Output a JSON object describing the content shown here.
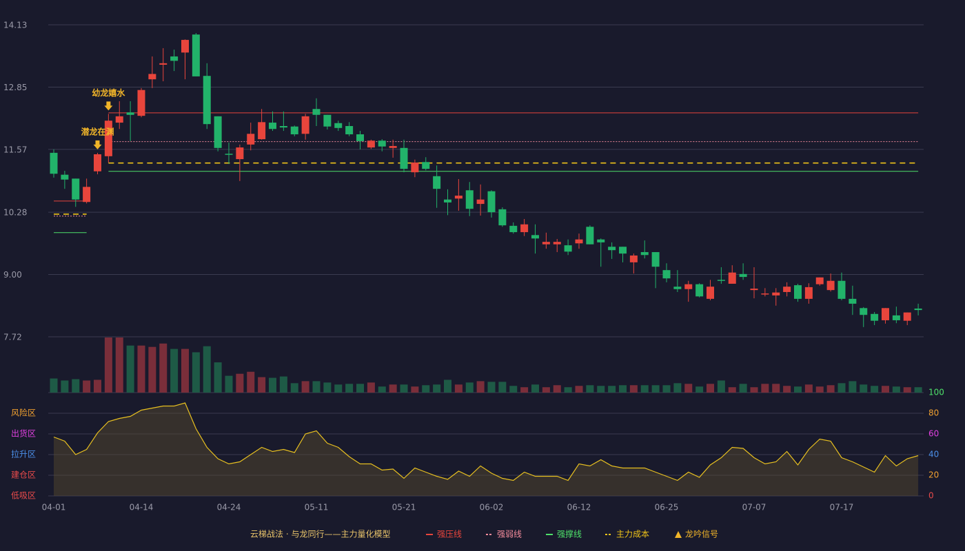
{
  "chart_data": {
    "type": "candlestick",
    "title": "云梯战法 · 与龙同行——主力量化模型",
    "title_color": "#e8c36a",
    "categories": [
      "04-01",
      null,
      null,
      null,
      null,
      null,
      null,
      null,
      "04-14",
      null,
      null,
      null,
      null,
      null,
      null,
      null,
      "04-24",
      null,
      null,
      null,
      null,
      null,
      null,
      null,
      "05-11",
      null,
      null,
      null,
      null,
      null,
      null,
      null,
      "05-21",
      null,
      null,
      null,
      null,
      null,
      null,
      null,
      "06-02",
      null,
      null,
      null,
      null,
      null,
      null,
      null,
      "06-12",
      null,
      null,
      null,
      null,
      null,
      null,
      null,
      "06-25",
      null,
      null,
      null,
      null,
      null,
      null,
      null,
      "07-07",
      null,
      null,
      null,
      null,
      null,
      null,
      null,
      "07-17",
      null,
      null,
      null,
      null,
      null,
      null,
      null
    ],
    "open": [
      11.5,
      11.05,
      10.97,
      10.49,
      11.12,
      11.43,
      12.12,
      12.33,
      12.26,
      13.01,
      13.31,
      13.48,
      13.56,
      13.93,
      13.08,
      12.25,
      11.48,
      11.37,
      11.67,
      11.78,
      12.12,
      12.05,
      12.04,
      11.89,
      12.4,
      12.28,
      12.11,
      12.05,
      11.88,
      11.61,
      11.75,
      11.6,
      11.6,
      11.1,
      11.31,
      11.02,
      10.54,
      10.56,
      10.73,
      10.45,
      10.71,
      10.34,
      10.0,
      9.87,
      9.81,
      9.62,
      9.62,
      9.6,
      9.64,
      9.98,
      9.72,
      9.57,
      9.57,
      9.25,
      9.46,
      9.46,
      9.09,
      8.75,
      8.7,
      8.8,
      8.5,
      8.89,
      8.81,
      9.01,
      8.68,
      8.6,
      8.57,
      8.64,
      8.78,
      8.5,
      8.8,
      8.68,
      8.87,
      8.5,
      8.31,
      8.19,
      8.06,
      8.16,
      8.05,
      8.3
    ],
    "high": [
      11.57,
      11.13,
      10.97,
      10.97,
      11.5,
      12.3,
      12.56,
      12.56,
      12.83,
      13.48,
      13.65,
      13.62,
      13.83,
      13.96,
      13.34,
      12.25,
      11.71,
      11.67,
      12.12,
      12.4,
      12.35,
      12.35,
      12.06,
      12.3,
      12.62,
      12.28,
      12.16,
      12.13,
      11.95,
      11.77,
      11.78,
      11.77,
      11.77,
      11.36,
      11.41,
      11.24,
      10.75,
      10.96,
      10.9,
      10.85,
      10.73,
      10.38,
      10.07,
      10.14,
      10.03,
      9.86,
      9.73,
      9.72,
      9.84,
      10.01,
      9.74,
      9.66,
      9.57,
      9.43,
      9.7,
      9.46,
      9.23,
      9.09,
      8.87,
      8.82,
      8.89,
      9.15,
      9.19,
      9.23,
      9.15,
      8.72,
      8.72,
      8.84,
      8.81,
      8.82,
      8.94,
      9.02,
      9.04,
      8.77,
      8.33,
      8.23,
      8.31,
      8.34,
      8.22,
      8.4
    ],
    "low": [
      10.99,
      10.76,
      10.39,
      10.46,
      11.06,
      11.3,
      11.99,
      11.74,
      12.23,
      12.83,
      12.97,
      13.18,
      13.01,
      13.07,
      11.99,
      11.53,
      11.27,
      10.92,
      11.55,
      11.77,
      11.95,
      11.95,
      11.84,
      11.77,
      12.05,
      11.98,
      11.95,
      11.84,
      11.57,
      11.58,
      11.53,
      11.4,
      11.1,
      11.0,
      11.14,
      10.37,
      10.22,
      10.31,
      10.2,
      10.21,
      10.17,
      9.98,
      9.84,
      9.79,
      9.43,
      9.53,
      9.46,
      9.4,
      9.53,
      9.62,
      9.16,
      9.32,
      9.25,
      9.02,
      9.33,
      8.72,
      8.84,
      8.64,
      8.44,
      8.53,
      8.47,
      8.81,
      8.81,
      8.89,
      8.51,
      8.55,
      8.36,
      8.55,
      8.44,
      8.4,
      8.77,
      8.65,
      8.47,
      8.17,
      7.92,
      7.96,
      7.99,
      8.0,
      7.96,
      8.16
    ],
    "close": [
      11.07,
      10.95,
      10.54,
      10.8,
      11.47,
      12.16,
      12.25,
      12.28,
      12.79,
      13.12,
      13.34,
      13.39,
      13.82,
      13.07,
      12.09,
      11.6,
      11.46,
      11.61,
      11.89,
      12.13,
      11.99,
      12.02,
      11.88,
      12.25,
      12.28,
      12.04,
      12.01,
      11.88,
      11.74,
      11.75,
      11.63,
      11.64,
      11.17,
      11.3,
      11.17,
      10.76,
      10.48,
      10.62,
      10.35,
      10.54,
      10.28,
      10.01,
      9.87,
      10.03,
      9.74,
      9.67,
      9.67,
      9.47,
      9.72,
      9.62,
      9.66,
      9.5,
      9.43,
      9.39,
      9.4,
      9.16,
      8.92,
      8.7,
      8.8,
      8.55,
      8.75,
      8.88,
      9.04,
      8.95,
      8.71,
      8.61,
      8.63,
      8.75,
      8.5,
      8.74,
      8.94,
      8.87,
      8.5,
      8.4,
      8.17,
      8.05,
      8.31,
      8.06,
      8.22,
      8.27
    ],
    "up_color": "#e8453c",
    "down_color": "#22b36a",
    "ylim": [
      7.72,
      14.13
    ],
    "yticks": [
      7.72,
      {
        "value": 9,
        "label": "9.00"
      },
      10.28,
      11.57,
      12.85,
      14.13
    ],
    "grid": true,
    "signals": [
      null,
      null,
      null,
      null,
      "潜龙在渊",
      "幼龙嬉水",
      null,
      null,
      null,
      null,
      null,
      null,
      null,
      null,
      null,
      null,
      null,
      null,
      null,
      null,
      null,
      null,
      null,
      null,
      null,
      null,
      null,
      null,
      null,
      null,
      null,
      null,
      null,
      null,
      null,
      null,
      null,
      null,
      null,
      null,
      null,
      null,
      null,
      null,
      null,
      null,
      null,
      null,
      null,
      null,
      null,
      null,
      null,
      null,
      null,
      null,
      null,
      null,
      null,
      null,
      null,
      null,
      null,
      null,
      null,
      null,
      null,
      null,
      null,
      null,
      null,
      null,
      null,
      null,
      null,
      null,
      null,
      null,
      null,
      null
    ],
    "signal_name": "龙吟信号",
    "signal_color": "#f0b429",
    "lines": [
      {
        "name": "强压线",
        "color": "#e8453c",
        "style": "solid",
        "values": [
          10.51,
          10.51,
          10.51,
          10.51,
          null,
          12.32,
          12.32,
          12.32,
          12.32,
          12.32,
          12.32,
          12.32,
          12.32,
          12.32,
          12.32,
          12.32,
          12.32,
          12.32,
          12.32,
          12.32,
          12.32,
          12.32,
          12.32,
          12.32,
          12.32,
          12.32,
          12.32,
          12.32,
          12.32,
          12.32,
          12.32,
          12.32,
          12.32,
          12.32,
          12.32,
          12.32,
          12.32,
          12.32,
          12.32,
          12.32,
          12.32,
          12.32,
          12.32,
          12.32,
          12.32,
          12.32,
          12.32,
          12.32,
          12.32,
          12.32,
          12.32,
          12.32,
          12.32,
          12.32,
          12.32,
          12.32,
          12.32,
          12.32,
          12.32,
          12.32,
          12.32,
          12.32,
          12.32,
          12.32,
          12.32,
          12.32,
          12.32,
          12.32,
          12.32,
          12.32,
          12.32,
          12.32,
          12.32,
          12.32,
          12.32,
          12.32,
          12.32,
          12.32,
          12.32,
          12.32
        ]
      },
      {
        "name": "强弱线",
        "color": "#f28b9b",
        "style": "dotted",
        "values": [
          10.2,
          10.2,
          10.2,
          10.2,
          null,
          11.73,
          11.73,
          11.73,
          11.73,
          11.73,
          11.73,
          11.73,
          11.73,
          11.73,
          11.73,
          11.73,
          11.73,
          11.73,
          11.73,
          11.73,
          11.73,
          11.73,
          11.73,
          11.73,
          11.73,
          11.73,
          11.73,
          11.73,
          11.73,
          11.73,
          11.73,
          11.73,
          11.73,
          11.73,
          11.73,
          11.73,
          11.73,
          11.73,
          11.73,
          11.73,
          11.73,
          11.73,
          11.73,
          11.73,
          11.73,
          11.73,
          11.73,
          11.73,
          11.73,
          11.73,
          11.73,
          11.73,
          11.73,
          11.73,
          11.73,
          11.73,
          11.73,
          11.73,
          11.73,
          11.73,
          11.73,
          11.73,
          11.73,
          11.73,
          11.73,
          11.73,
          11.73,
          11.73,
          11.73,
          11.73,
          11.73,
          11.73,
          11.73,
          11.73,
          11.73,
          11.73,
          11.73,
          11.73,
          11.73,
          11.73
        ]
      },
      {
        "name": "强撑线",
        "color": "#4ee06a",
        "style": "solid",
        "values": [
          9.86,
          9.86,
          9.86,
          9.86,
          null,
          11.12,
          11.12,
          11.12,
          11.12,
          11.12,
          11.12,
          11.12,
          11.12,
          11.12,
          11.12,
          11.12,
          11.12,
          11.12,
          11.12,
          11.12,
          11.12,
          11.12,
          11.12,
          11.12,
          11.12,
          11.12,
          11.12,
          11.12,
          11.12,
          11.12,
          11.12,
          11.12,
          11.12,
          11.12,
          11.12,
          11.12,
          11.12,
          11.12,
          11.12,
          11.12,
          11.12,
          11.12,
          11.12,
          11.12,
          11.12,
          11.12,
          11.12,
          11.12,
          11.12,
          11.12,
          11.12,
          11.12,
          11.12,
          11.12,
          11.12,
          11.12,
          11.12,
          11.12,
          11.12,
          11.12,
          11.12,
          11.12,
          11.12,
          11.12,
          11.12,
          11.12,
          11.12,
          11.12,
          11.12,
          11.12,
          11.12,
          11.12,
          11.12,
          11.12,
          11.12,
          11.12,
          11.12,
          11.12,
          11.12,
          11.12
        ]
      },
      {
        "name": "主力成本",
        "color": "#f0c419",
        "style": "dashed",
        "values": [
          10.24,
          10.24,
          10.24,
          10.24,
          null,
          11.29,
          11.29,
          11.29,
          11.29,
          11.29,
          11.29,
          11.29,
          11.29,
          11.29,
          11.29,
          11.29,
          11.29,
          11.29,
          11.29,
          11.29,
          11.29,
          11.29,
          11.29,
          11.29,
          11.29,
          11.29,
          11.29,
          11.29,
          11.29,
          11.29,
          11.29,
          11.29,
          11.29,
          11.29,
          11.29,
          11.29,
          11.29,
          11.29,
          11.29,
          11.29,
          11.29,
          11.29,
          11.29,
          11.29,
          11.29,
          11.29,
          11.29,
          11.29,
          11.29,
          11.29,
          11.29,
          11.29,
          11.29,
          11.29,
          11.29,
          11.29,
          11.29,
          11.29,
          11.29,
          11.29,
          11.29,
          11.29,
          11.29,
          11.29,
          11.29,
          11.29,
          11.29,
          11.29,
          11.29,
          11.29,
          11.29,
          11.29,
          11.29,
          11.29,
          11.29,
          11.29,
          11.29,
          11.29,
          11.29,
          11.29
        ]
      }
    ],
    "volume": [
      21,
      18,
      20,
      18,
      19,
      82,
      82,
      70,
      70,
      68,
      73,
      65,
      65,
      60,
      69,
      45,
      25,
      28,
      31,
      23,
      22,
      24,
      14,
      17,
      17,
      15,
      12,
      13,
      13,
      15,
      9,
      12,
      12,
      9,
      11,
      12,
      19,
      12,
      15,
      17,
      16,
      16,
      10,
      8,
      12,
      8,
      11,
      8,
      10,
      11,
      10,
      10,
      11,
      11,
      11,
      11,
      11,
      14,
      13,
      9,
      13,
      18,
      8,
      13,
      8,
      13,
      13,
      10,
      9,
      12,
      9,
      11,
      14,
      17,
      12,
      10,
      10,
      9,
      8,
      8
    ],
    "oscillator": {
      "values": [
        57,
        53,
        40,
        45,
        61,
        72,
        75,
        77,
        83,
        85,
        87,
        87,
        90,
        65,
        47,
        36,
        31,
        33,
        40,
        47,
        43,
        45,
        42,
        60,
        63,
        51,
        47,
        38,
        31,
        31,
        25,
        26,
        17,
        27,
        23,
        19,
        16,
        24,
        19,
        29,
        22,
        17,
        15,
        23,
        19,
        19,
        19,
        15,
        31,
        29,
        35,
        29,
        27,
        27,
        27,
        23,
        19,
        15,
        23,
        18,
        30,
        37,
        47,
        46,
        37,
        31,
        33,
        43,
        30,
        45,
        55,
        53,
        37,
        33,
        28,
        23,
        39,
        29,
        36,
        39
      ],
      "color": "#e8c020",
      "y2lim": [
        0,
        100
      ],
      "y2ticks": [
        0,
        20,
        40,
        60,
        80,
        100
      ],
      "y2tick_colors": [
        "#e84a4a",
        "#f0a030",
        "#4b8fe8",
        "#e040e0",
        "#f0a030",
        "#4ee06a"
      ],
      "zones": [
        {
          "label": "风险区",
          "value": 80,
          "color": "#f0a030"
        },
        {
          "label": "出货区",
          "value": 60,
          "color": "#e040e0"
        },
        {
          "label": "拉升区",
          "value": 40,
          "color": "#4b8fe8"
        },
        {
          "label": "建仓区",
          "value": 20,
          "color": "#e84a4a"
        },
        {
          "label": "低吸区",
          "value": 0,
          "color": "#e84a4a"
        }
      ]
    }
  }
}
